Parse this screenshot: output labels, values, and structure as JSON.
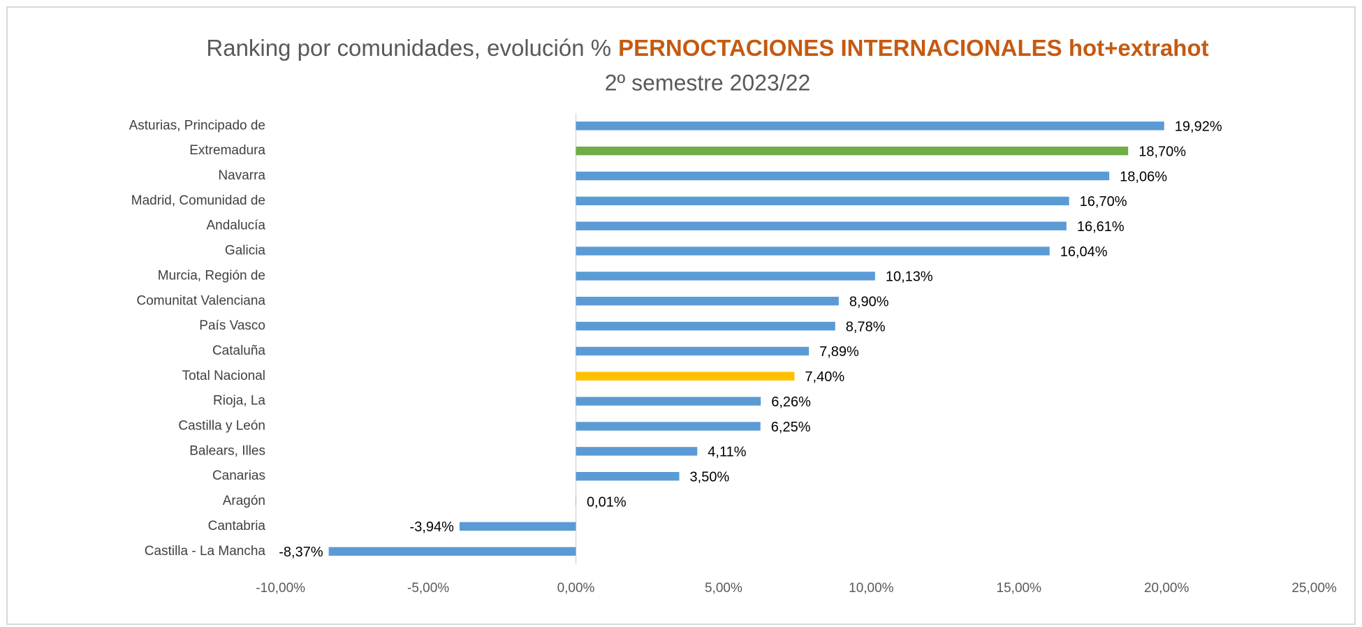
{
  "chart_data": {
    "type": "barh",
    "title": "Ranking por comunidades, evolución %",
    "title_highlight": "PERNOCTACIONES INTERNACIONALES hot+extrahot",
    "subtitle": "2º semestre 2023/22",
    "categories": [
      "Asturias, Principado de",
      "Extremadura",
      "Navarra",
      "Madrid, Comunidad de",
      "Andalucía",
      "Galicia",
      "Murcia, Región de",
      "Comunitat Valenciana",
      "País Vasco",
      "Cataluña",
      "Total Nacional",
      "Rioja, La",
      "Castilla y León",
      "Balears, Illes",
      "Canarias",
      "Aragón",
      "Cantabria",
      "Castilla - La Mancha"
    ],
    "values": [
      19.92,
      18.7,
      18.06,
      16.7,
      16.61,
      16.04,
      10.13,
      8.9,
      8.78,
      7.89,
      7.4,
      6.26,
      6.25,
      4.11,
      3.5,
      0.01,
      -3.94,
      -8.37
    ],
    "value_labels": [
      "19,92%",
      "18,70%",
      "18,06%",
      "16,70%",
      "16,61%",
      "16,04%",
      "10,13%",
      "8,90%",
      "8,78%",
      "7,89%",
      "7,40%",
      "6,26%",
      "6,25%",
      "4,11%",
      "3,50%",
      "0,01%",
      "-3,94%",
      "-8,37%"
    ],
    "colors": [
      "#5b9bd5",
      "#70ad47",
      "#5b9bd5",
      "#5b9bd5",
      "#5b9bd5",
      "#5b9bd5",
      "#5b9bd5",
      "#5b9bd5",
      "#5b9bd5",
      "#5b9bd5",
      "#ffc000",
      "#5b9bd5",
      "#5b9bd5",
      "#5b9bd5",
      "#5b9bd5",
      "#5b9bd5",
      "#5b9bd5",
      "#5b9bd5"
    ],
    "xlim": [
      -10,
      25
    ],
    "xticks": [
      {
        "value": -10,
        "label": "-10,00%"
      },
      {
        "value": -5,
        "label": "-5,00%"
      },
      {
        "value": 0,
        "label": "0,00%"
      },
      {
        "value": 5,
        "label": "5,00%"
      },
      {
        "value": 10,
        "label": "10,00%"
      },
      {
        "value": 15,
        "label": "15,00%"
      },
      {
        "value": 20,
        "label": "20,00%"
      },
      {
        "value": 25,
        "label": "25,00%"
      }
    ],
    "grid": false
  }
}
